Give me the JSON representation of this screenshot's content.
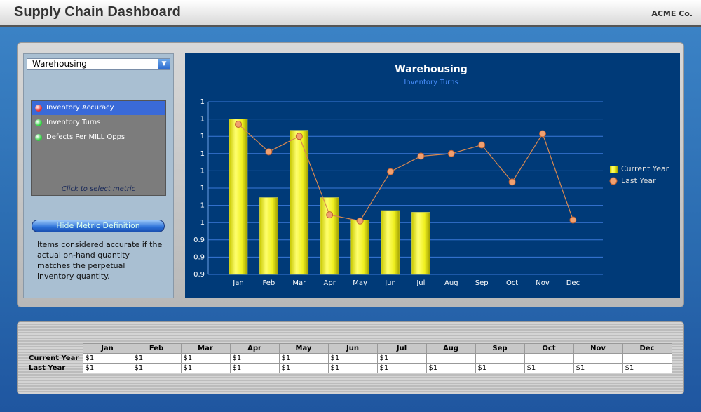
{
  "header": {
    "title": "Supply Chain Dashboard",
    "company": "ACME Co."
  },
  "sidebar": {
    "dropdown": "Warehousing",
    "metrics": [
      {
        "label": "Inventory Accuracy",
        "status": "red"
      },
      {
        "label": "Inventory Turns",
        "status": "green"
      },
      {
        "label": "Defects Per MILL Opps",
        "status": "green"
      }
    ],
    "hint": "Click to select metric",
    "button": "Hide Metric Definition",
    "definition": "Items considered accurate if the actual on-hand quantity matches the perpetual inventory quantity."
  },
  "chart_data": {
    "type": "bar",
    "title": "Warehousing",
    "subtitle": "Inventory Turns",
    "categories": [
      "Jan",
      "Feb",
      "Mar",
      "Apr",
      "May",
      "Jun",
      "Jul",
      "Aug",
      "Sep",
      "Oct",
      "Nov",
      "Dec"
    ],
    "series": [
      {
        "name": "Current Year",
        "type": "bar",
        "color": "#f2f21e",
        "values": [
          1.08,
          0.989,
          1.067,
          0.989,
          0.963,
          0.974,
          0.972,
          null,
          null,
          null,
          null,
          null
        ]
      },
      {
        "name": "Last Year",
        "type": "line",
        "color": "#f0a070",
        "values": [
          1.074,
          1.042,
          1.06,
          0.969,
          0.962,
          1.019,
          1.037,
          1.04,
          1.05,
          1.007,
          1.063,
          0.963
        ]
      }
    ],
    "ylim": [
      0.9,
      1.1
    ],
    "yticks": [
      0.9,
      {
        "value": 0.92,
        "label": "0.9"
      },
      {
        "value": 0.94,
        "label": "0.9"
      },
      {
        "value": 0.96,
        "label": "1"
      },
      {
        "value": 0.98,
        "label": "1"
      },
      1,
      {
        "value": 1.02,
        "label": "1"
      },
      {
        "value": 1.04,
        "label": "1"
      },
      {
        "value": 1.06,
        "label": "1"
      },
      {
        "value": 1.08,
        "label": "1"
      },
      {
        "value": 1.1,
        "label": "1"
      }
    ],
    "grid": true,
    "legend": "right"
  },
  "table": {
    "header": [
      "Jan",
      "Feb",
      "Mar",
      "Apr",
      "May",
      "Jun",
      "Jul",
      "Aug",
      "Sep",
      "Oct",
      "Nov",
      "Dec"
    ],
    "rows": [
      {
        "label": "Current Year",
        "cells": [
          "$1",
          "$1",
          "$1",
          "$1",
          "$1",
          "$1",
          "$1",
          null,
          null,
          null,
          null,
          null
        ]
      },
      {
        "label": "Last Year",
        "cells": [
          "$1",
          "$1",
          "$1",
          "$1",
          "$1",
          "$1",
          "$1",
          "$1",
          "$1",
          "$1",
          "$1",
          "$1"
        ]
      }
    ]
  }
}
